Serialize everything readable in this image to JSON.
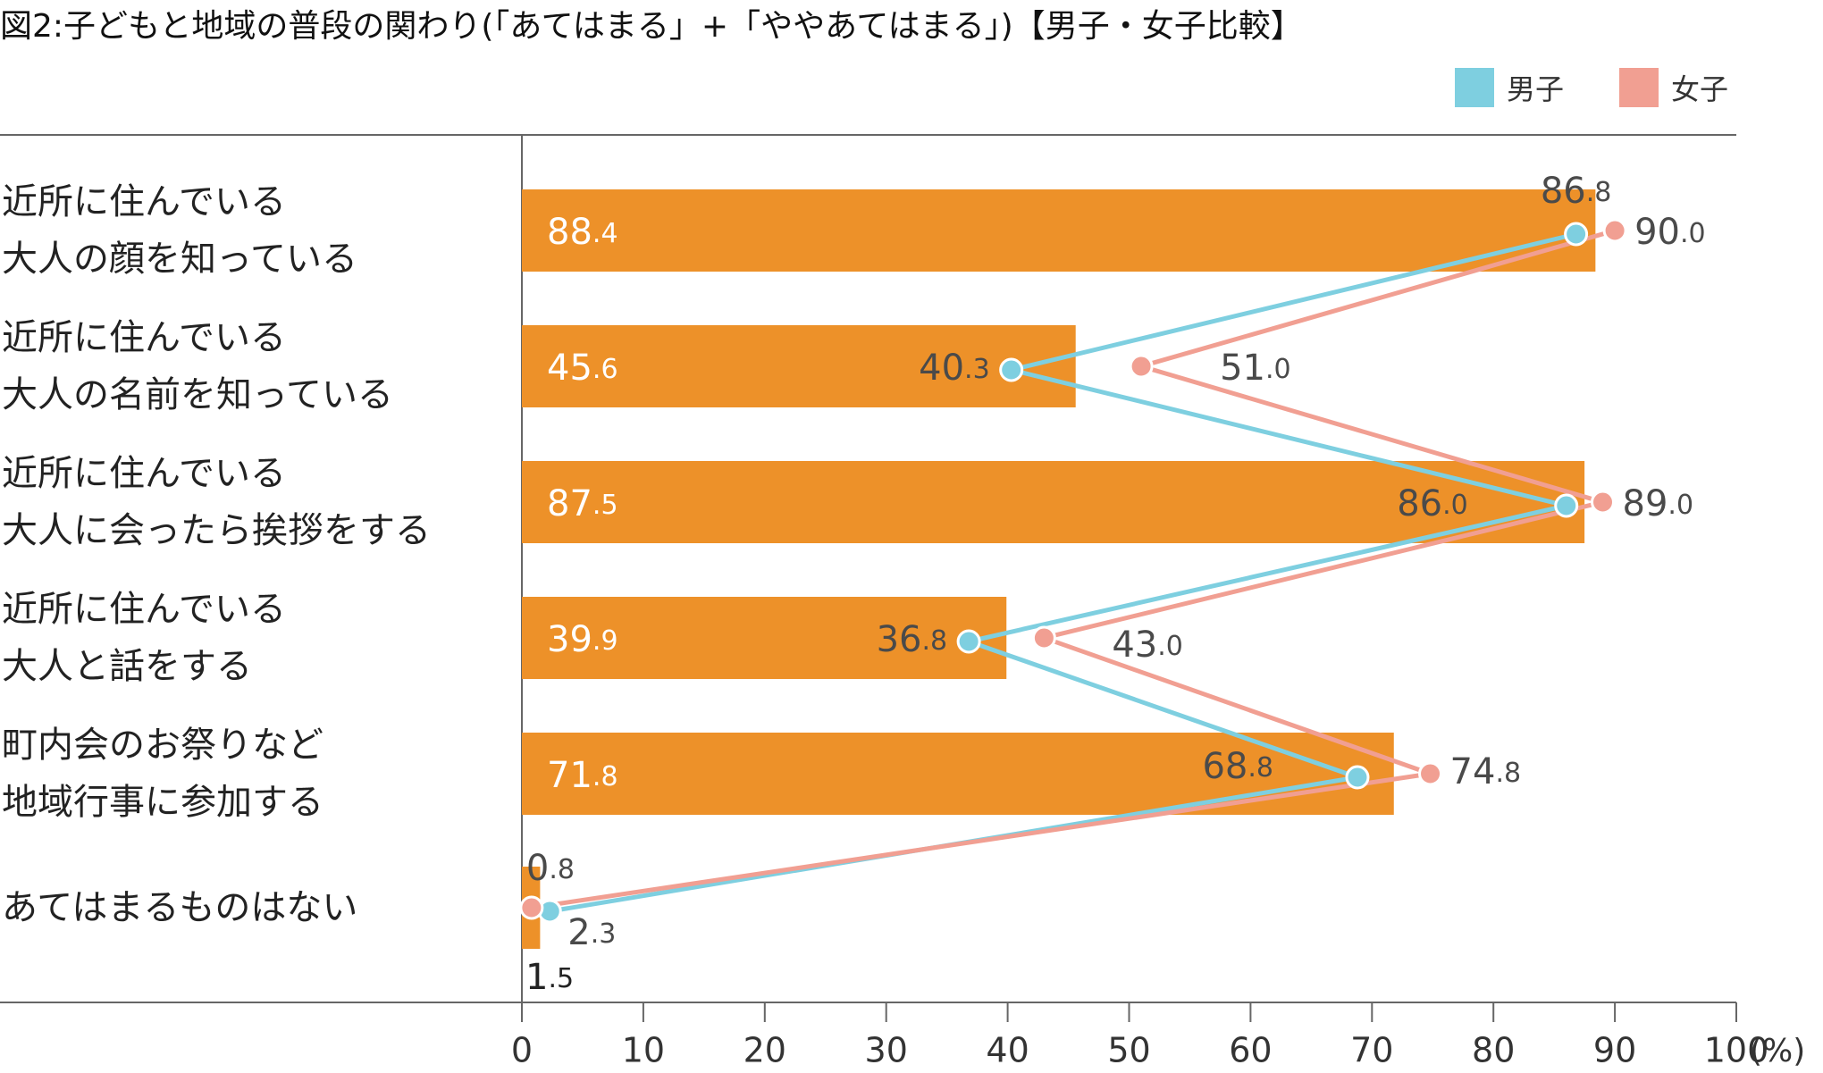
{
  "title": "図2:子どもと地域の普段の関わり(「あてはまる」+「ややあてはまる」)【男子・女子比較】",
  "legend": [
    {
      "label": "男子",
      "color": "#7ecfe0"
    },
    {
      "label": "女子",
      "color": "#f19f92"
    }
  ],
  "chart_data": {
    "type": "bar",
    "orientation": "horizontal",
    "bar_color": "#ed9129",
    "categories": [
      [
        "近所に住んでいる",
        "大人の顔を知っている"
      ],
      [
        "近所に住んでいる",
        "大人の名前を知っている"
      ],
      [
        "近所に住んでいる",
        "大人に会ったら挨拶をする"
      ],
      [
        "近所に住んでいる",
        "大人と話をする"
      ],
      [
        "町内会のお祭りなど",
        "地域行事に参加する"
      ],
      [
        "あてはまるものはない"
      ]
    ],
    "total": {
      "values": [
        88.4,
        45.6,
        87.5,
        39.9,
        71.8,
        1.5
      ],
      "labels": [
        [
          "88",
          ".4"
        ],
        [
          "45",
          ".6"
        ],
        [
          "87",
          ".5"
        ],
        [
          "39",
          ".9"
        ],
        [
          "71",
          ".8"
        ],
        [
          "1",
          ".5"
        ]
      ]
    },
    "series": [
      {
        "name": "男子",
        "color": "#7ecfe0",
        "values": [
          86.8,
          40.3,
          86.0,
          36.8,
          68.8,
          2.3
        ],
        "labels": [
          [
            "86",
            ".8"
          ],
          [
            "40",
            ".3"
          ],
          [
            "86",
            ".0"
          ],
          [
            "36",
            ".8"
          ],
          [
            "68",
            ".8"
          ],
          [
            "2",
            ".3"
          ]
        ]
      },
      {
        "name": "女子",
        "color": "#f19f92",
        "values": [
          90.0,
          51.0,
          89.0,
          43.0,
          74.8,
          0.8
        ],
        "labels": [
          [
            "90",
            ".0"
          ],
          [
            "51",
            ".0"
          ],
          [
            "89",
            ".0"
          ],
          [
            "43",
            ".0"
          ],
          [
            "74",
            ".8"
          ],
          [
            "0",
            ".8"
          ]
        ]
      }
    ],
    "xlim": [
      0,
      100
    ],
    "xticks": [
      "0",
      "10",
      "20",
      "30",
      "40",
      "50",
      "60",
      "70",
      "80",
      "90",
      "100"
    ],
    "xunit": "(%)"
  }
}
